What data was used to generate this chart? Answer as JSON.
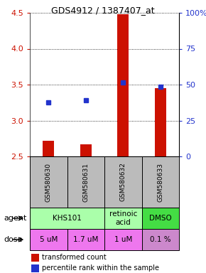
{
  "title": "GDS4912 / 1387407_at",
  "samples": [
    "GSM580630",
    "GSM580631",
    "GSM580632",
    "GSM580633"
  ],
  "bar_values": [
    2.72,
    2.67,
    4.48,
    3.45
  ],
  "bar_base": 2.5,
  "dot_values": [
    3.25,
    3.28,
    3.53,
    3.47
  ],
  "ylim": [
    2.5,
    4.5
  ],
  "yticks_left": [
    2.5,
    3.0,
    3.5,
    4.0,
    4.5
  ],
  "yticks_right": [
    0,
    25,
    50,
    75,
    100
  ],
  "ytick_labels_right": [
    "0",
    "25",
    "50",
    "75",
    "100%"
  ],
  "doses": [
    "5 uM",
    "1.7 uM",
    "1 uM",
    "0.1 %"
  ],
  "dose_colors": [
    "#ee77ee",
    "#ee77ee",
    "#ee77ee",
    "#cc88cc"
  ],
  "bar_color": "#cc1100",
  "dot_color": "#2233cc",
  "legend_bar_label": "transformed count",
  "legend_dot_label": "percentile rank within the sample",
  "agent_row_label": "agent",
  "dose_row_label": "dose",
  "sample_box_color": "#bbbbbb",
  "agent_groups": [
    {
      "cols": [
        0,
        1
      ],
      "label": "KHS101",
      "color": "#aaffaa"
    },
    {
      "cols": [
        2
      ],
      "label": "retinoic\nacid",
      "color": "#aaffaa"
    },
    {
      "cols": [
        3
      ],
      "label": "DMSO",
      "color": "#44dd44"
    }
  ]
}
